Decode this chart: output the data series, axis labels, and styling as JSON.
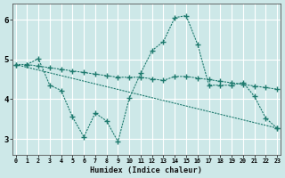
{
  "xlabel": "Humidex (Indice chaleur)",
  "bg_color": "#cde8e8",
  "grid_color": "#b8d8d8",
  "line_color": "#1e7a6e",
  "xlim": [
    -0.3,
    23.3
  ],
  "ylim": [
    2.6,
    6.4
  ],
  "xticks": [
    0,
    1,
    2,
    3,
    4,
    5,
    6,
    7,
    8,
    9,
    10,
    11,
    12,
    13,
    14,
    15,
    16,
    17,
    18,
    19,
    20,
    21,
    22,
    23
  ],
  "yticks": [
    3,
    4,
    5,
    6
  ],
  "line1_x": [
    0,
    1,
    2,
    3,
    4,
    5,
    6,
    7,
    8,
    9,
    10,
    11,
    12,
    13,
    14,
    15,
    16,
    17,
    18,
    19,
    20,
    21,
    22,
    23
  ],
  "line1_y": [
    4.87,
    4.87,
    4.83,
    4.79,
    4.75,
    4.71,
    4.67,
    4.63,
    4.59,
    4.55,
    4.55,
    4.55,
    4.51,
    4.47,
    4.57,
    4.57,
    4.53,
    4.49,
    4.45,
    4.41,
    4.37,
    4.33,
    4.29,
    4.25
  ],
  "line2_x": [
    0,
    23
  ],
  "line2_y": [
    4.87,
    3.27
  ],
  "line3_x": [
    1,
    2,
    3,
    4,
    5,
    6,
    7,
    8,
    9,
    10,
    11,
    12,
    13,
    14,
    15,
    16,
    17,
    18,
    19,
    20,
    21,
    22,
    23
  ],
  "line3_y": [
    4.87,
    5.02,
    4.35,
    4.22,
    3.55,
    3.05,
    3.65,
    3.45,
    2.93,
    4.02,
    4.65,
    5.22,
    5.45,
    6.05,
    6.1,
    5.38,
    4.35,
    4.35,
    4.35,
    4.42,
    4.07,
    3.52,
    3.27
  ]
}
